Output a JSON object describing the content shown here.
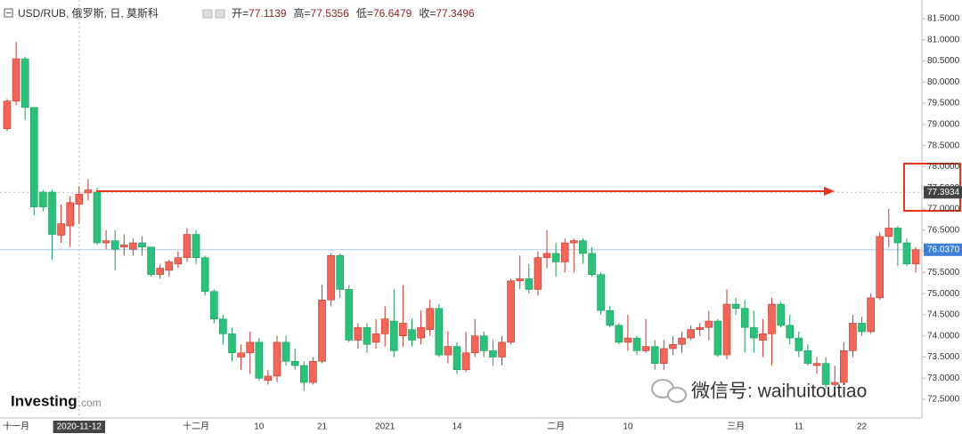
{
  "chart_data": {
    "type": "candlestick",
    "title": "USD/RUB, 俄罗斯, 日, 莫斯科",
    "readout": [
      {
        "label": "开=",
        "value": 77.1139
      },
      {
        "label": "高=",
        "value": 77.5356
      },
      {
        "label": "低=",
        "value": 76.6479
      },
      {
        "label": "收=",
        "value": 77.3496
      }
    ],
    "categories": [
      null,
      "十一月",
      null,
      null,
      null,
      null,
      null,
      null,
      "2020-11-12",
      null,
      null,
      null,
      null,
      null,
      null,
      null,
      null,
      null,
      null,
      null,
      null,
      "十二月",
      null,
      null,
      null,
      null,
      null,
      null,
      "10",
      null,
      null,
      null,
      null,
      null,
      null,
      "21",
      null,
      null,
      null,
      null,
      null,
      null,
      "2021",
      null,
      null,
      null,
      null,
      null,
      null,
      null,
      "14",
      null,
      null,
      null,
      null,
      null,
      null,
      null,
      null,
      null,
      null,
      "二月",
      null,
      null,
      null,
      null,
      null,
      null,
      null,
      "10",
      null,
      null,
      null,
      null,
      null,
      null,
      null,
      null,
      null,
      null,
      null,
      "三月",
      null,
      null,
      null,
      null,
      null,
      null,
      "11",
      null,
      null,
      null,
      null,
      null,
      null,
      "22",
      null,
      null,
      null,
      null,
      null,
      null
    ],
    "open": [
      78.9,
      79.55,
      80.55,
      79.4,
      77.4,
      77.4,
      76.38,
      76.6,
      77.1139,
      77.38,
      77.4,
      76.2,
      76.25,
      76.1,
      76.05,
      76.2,
      76.1,
      75.45,
      75.55,
      75.7,
      75.85,
      76.4,
      75.85,
      75.05,
      74.4,
      74.05,
      73.5,
      73.6,
      73.85,
      72.95,
      73.05,
      73.85,
      73.4,
      73.3,
      72.9,
      73.4,
      74.85,
      75.9,
      75.1,
      73.9,
      74.2,
      73.85,
      74.05,
      74.35,
      74.0,
      74.15,
      73.95,
      74.15,
      74.65,
      73.55,
      73.75,
      73.2,
      73.6,
      74.0,
      73.65,
      73.5,
      73.85,
      75.3,
      75.35,
      75.1,
      75.85,
      75.95,
      75.75,
      76.2,
      76.25,
      75.95,
      75.45,
      74.6,
      74.25,
      73.85,
      73.95,
      73.65,
      73.75,
      73.35,
      73.7,
      73.8,
      73.95,
      74.15,
      74.2,
      74.35,
      73.55,
      74.75,
      74.65,
      74.2,
      73.9,
      74.05,
      74.75,
      74.25,
      73.95,
      73.65,
      73.3,
      73.35,
      72.85,
      72.9,
      73.65,
      74.3,
      74.1,
      74.9,
      76.35,
      76.55,
      76.2,
      75.7
    ],
    "high": [
      79.6,
      80.95,
      80.6,
      79.4,
      77.45,
      77.45,
      77.1,
      77.3,
      77.5356,
      77.7,
      77.5,
      76.5,
      76.5,
      76.4,
      76.3,
      76.35,
      76.1,
      75.7,
      75.8,
      76.0,
      76.55,
      76.5,
      75.9,
      75.1,
      74.5,
      74.2,
      73.8,
      74.1,
      73.95,
      73.2,
      74.0,
      74.0,
      73.7,
      73.4,
      73.5,
      75.2,
      75.95,
      75.95,
      75.2,
      74.3,
      74.3,
      74.4,
      74.7,
      75.1,
      75.2,
      74.4,
      74.6,
      74.85,
      74.75,
      74.1,
      73.85,
      74.1,
      74.4,
      74.1,
      73.9,
      74.0,
      75.35,
      75.9,
      75.7,
      76.0,
      76.5,
      76.2,
      76.3,
      76.3,
      76.3,
      76.1,
      75.5,
      74.7,
      74.3,
      74.5,
      74.0,
      74.4,
      73.9,
      73.9,
      74.0,
      74.1,
      74.25,
      74.3,
      74.6,
      74.4,
      75.1,
      74.9,
      74.85,
      74.6,
      74.4,
      74.9,
      74.8,
      74.5,
      74.1,
      73.8,
      73.5,
      73.5,
      73.3,
      73.85,
      74.5,
      74.45,
      75.0,
      76.45,
      77.0,
      76.6,
      76.3,
      76.1
    ],
    "low": [
      78.85,
      79.45,
      79.1,
      76.85,
      76.95,
      75.8,
      76.2,
      76.1,
      76.6479,
      77.2,
      76.15,
      76.05,
      75.55,
      75.9,
      75.9,
      75.9,
      75.4,
      75.35,
      75.4,
      75.6,
      75.75,
      75.7,
      74.95,
      74.3,
      73.8,
      73.4,
      73.2,
      73.1,
      72.95,
      72.85,
      72.9,
      73.3,
      73.2,
      72.7,
      72.85,
      73.35,
      74.7,
      74.9,
      73.85,
      73.7,
      73.6,
      73.7,
      73.75,
      73.5,
      73.75,
      73.75,
      73.8,
      74.0,
      73.5,
      73.35,
      73.1,
      73.15,
      73.5,
      73.5,
      73.3,
      73.3,
      73.8,
      75.1,
      75.0,
      74.95,
      75.6,
      75.4,
      75.5,
      75.5,
      75.7,
      75.4,
      74.5,
      74.2,
      73.8,
      73.65,
      73.55,
      73.6,
      73.2,
      73.2,
      73.55,
      73.6,
      73.9,
      74.0,
      73.9,
      73.5,
      73.45,
      74.5,
      73.6,
      73.6,
      73.5,
      73.3,
      74.2,
      73.8,
      73.5,
      73.3,
      73.1,
      72.75,
      72.7,
      72.85,
      73.5,
      74.0,
      74.05,
      74.85,
      76.1,
      75.65,
      75.65,
      75.5
    ],
    "close": [
      79.55,
      80.55,
      79.4,
      77.05,
      77.05,
      76.4,
      76.65,
      77.15,
      77.3496,
      77.45,
      76.2,
      76.25,
      76.05,
      76.15,
      76.2,
      76.1,
      75.45,
      75.6,
      75.75,
      75.85,
      76.4,
      75.85,
      75.05,
      74.4,
      74.05,
      73.6,
      73.6,
      73.85,
      73.0,
      73.05,
      73.85,
      73.4,
      73.3,
      72.9,
      73.4,
      74.85,
      75.9,
      75.1,
      73.9,
      74.2,
      73.8,
      74.05,
      74.4,
      73.65,
      74.3,
      73.9,
      74.2,
      74.65,
      73.55,
      73.75,
      73.2,
      73.6,
      74.0,
      73.65,
      73.5,
      73.85,
      75.3,
      75.35,
      75.1,
      75.85,
      75.95,
      75.75,
      76.2,
      76.25,
      75.95,
      75.45,
      74.6,
      74.25,
      73.85,
      73.95,
      73.65,
      73.75,
      73.35,
      73.7,
      73.8,
      73.95,
      74.15,
      74.2,
      74.35,
      73.55,
      74.75,
      74.65,
      74.2,
      73.95,
      74.05,
      74.75,
      74.25,
      73.95,
      73.65,
      73.35,
      73.35,
      72.85,
      72.9,
      73.65,
      74.3,
      74.1,
      74.9,
      76.35,
      76.55,
      76.2,
      75.7,
      76.037
    ],
    "up_color": "#f2665a",
    "down_color": "#2cc17b",
    "ylim": [
      72.06,
      81.94
    ],
    "yticks": [
      {
        "value": 72.5,
        "label": "72.5000"
      },
      {
        "value": 73,
        "label": "73.0000"
      },
      {
        "value": 73.5,
        "label": "73.5000"
      },
      {
        "value": 74,
        "label": "74.0000"
      },
      {
        "value": 74.5,
        "label": "74.5000"
      },
      {
        "value": 75,
        "label": "75.0000"
      },
      {
        "value": 75.5,
        "label": "75.5000"
      },
      {
        "value": 76,
        "label": "76.0000"
      },
      {
        "value": 76.5,
        "label": "76.5000"
      },
      {
        "value": 77,
        "label": "77.0000"
      },
      {
        "value": 77.5,
        "label": "77.5000"
      },
      {
        "value": 78,
        "label": "78.0000"
      },
      {
        "value": 78.5,
        "label": "78.5000"
      },
      {
        "value": 79,
        "label": "79.0000"
      },
      {
        "value": 79.5,
        "label": "79.5000"
      },
      {
        "value": 80,
        "label": "80.0000"
      },
      {
        "value": 80.5,
        "label": "80.5000"
      },
      {
        "value": 81,
        "label": "81.0000"
      },
      {
        "value": 81.5,
        "label": "81.5000"
      }
    ],
    "crosshair": {
      "x_index": 8,
      "y": {
        "value": 77.3934,
        "label": "77.3934"
      }
    },
    "last_price": {
      "value": 76.037,
      "label": "76.0370"
    },
    "logo": "Investing",
    "logo_suffix": ".com",
    "watermark": "微信号: waihuitoutiao"
  }
}
